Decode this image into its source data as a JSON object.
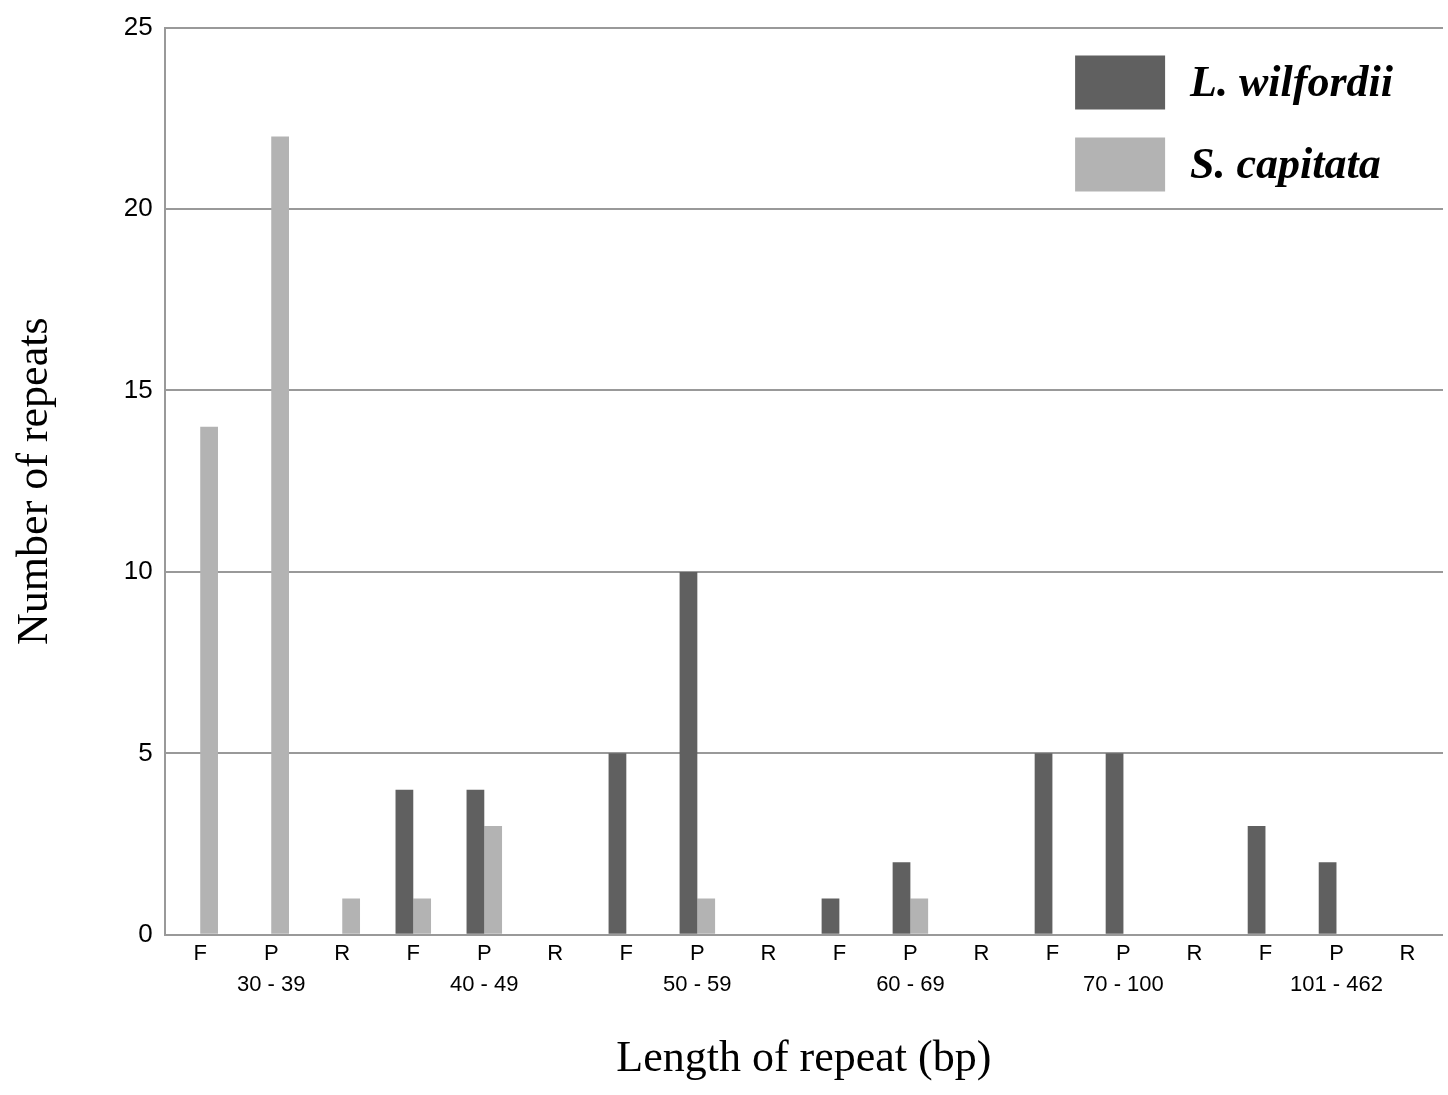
{
  "chart_data": {
    "type": "bar",
    "xlabel": "Length of repeat (bp)",
    "ylabel": "Number of repeats",
    "categories": [
      "F",
      "P",
      "R",
      "F",
      "P",
      "R",
      "F",
      "P",
      "R",
      "F",
      "P",
      "R",
      "F",
      "P",
      "R",
      "F",
      "P",
      "R"
    ],
    "series": [
      {
        "name": "L. wilfordii",
        "color": "#606060",
        "values": [
          0,
          0,
          0,
          4,
          4,
          0,
          5,
          10,
          0,
          1,
          2,
          0,
          5,
          5,
          0,
          3,
          2,
          0
        ]
      },
      {
        "name": "S. capitata",
        "color": "#b3b3b3",
        "values": [
          14,
          22,
          1,
          1,
          3,
          0,
          0,
          1,
          0,
          0,
          1,
          0,
          0,
          0,
          0,
          0,
          0,
          0
        ]
      }
    ],
    "annotations": [
      "30 - 39",
      "40 - 49",
      "50 - 59",
      "60 - 69",
      "70 - 100",
      "101 - 462"
    ],
    "ylim": [
      0,
      25
    ],
    "yticks": [
      0,
      5,
      10,
      15,
      20,
      25
    ],
    "grid": "y",
    "legend": "top right"
  }
}
